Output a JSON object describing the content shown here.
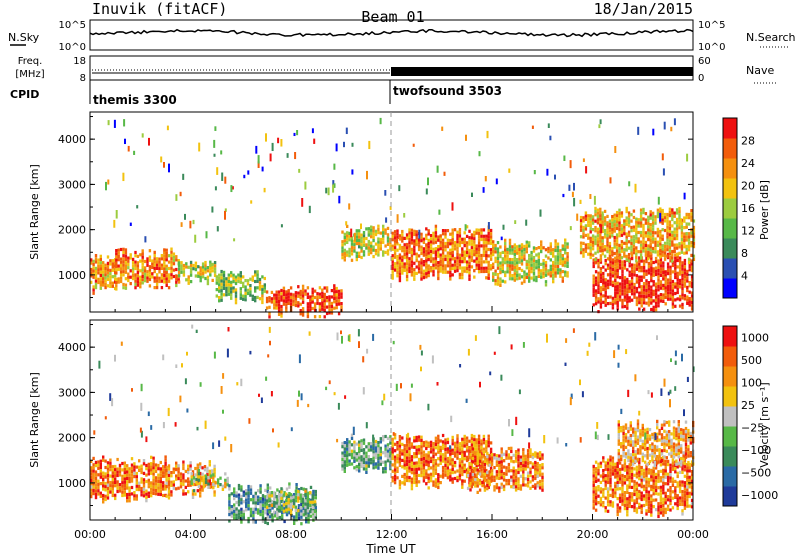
{
  "header": {
    "site": "Inuvik (fitACF)",
    "beam": "Beam 01",
    "date": "18/Jan/2015"
  },
  "aux_panels": {
    "nsky": {
      "left_label": "N.Sky",
      "right_label": "N.Search",
      "left_ticks": [
        "10^5",
        "10^0"
      ],
      "right_ticks": [
        "10^5",
        "10^0"
      ]
    },
    "freq": {
      "label_line1": "Freq.",
      "label_line2": "[MHz]",
      "right_label": "Nave",
      "left_ticks": [
        "18",
        "8"
      ],
      "right_ticks": [
        "60",
        "0"
      ]
    },
    "cpid": {
      "label": "CPID",
      "programs": [
        "themis 3300",
        "twofsound 3503"
      ]
    }
  },
  "colors": {
    "power_scale": [
      "#0000ff",
      "#2a4fb2",
      "#3a8a5a",
      "#57b847",
      "#9ccc3f",
      "#f2c20f",
      "#f5900f",
      "#f25c0a",
      "#ee1010"
    ],
    "velocity_scale": [
      "#1f3b9a",
      "#2a6aa5",
      "#3a8a5a",
      "#57b847",
      "#c0c0c0",
      "#f2c20f",
      "#f5900f",
      "#f25c0a",
      "#ee1010"
    ],
    "ground_scatter": "#c0c0c0"
  },
  "chart_data": [
    {
      "type": "heatmap",
      "title": "",
      "xlabel": "",
      "ylabel": "Slant Range [km]",
      "x_ticks": [
        "00:00",
        "04:00",
        "08:00",
        "12:00",
        "16:00",
        "20:00",
        "00:00"
      ],
      "x_range_hours": [
        0,
        24
      ],
      "y_ticks": [
        1000,
        2000,
        3000,
        4000
      ],
      "y_range_km": [
        180,
        4600
      ],
      "colorbar": {
        "label": "Power [dB]",
        "ticks": [
          "4",
          "8",
          "12",
          "16",
          "20",
          "24",
          "28"
        ],
        "range": [
          0,
          30
        ]
      },
      "echo_regions": [
        {
          "t": [
            0.0,
            1.0
          ],
          "range_km": [
            700,
            1400
          ],
          "level": 0.72
        },
        {
          "t": [
            1.0,
            3.5
          ],
          "range_km": [
            800,
            1500
          ],
          "level": 0.78
        },
        {
          "t": [
            3.5,
            5.0
          ],
          "range_km": [
            900,
            1300
          ],
          "level": 0.55
        },
        {
          "t": [
            5.0,
            7.0
          ],
          "range_km": [
            500,
            1000
          ],
          "level": 0.45
        },
        {
          "t": [
            7.0,
            10.0
          ],
          "range_km": [
            200,
            700
          ],
          "level": 0.92
        },
        {
          "t": [
            10.0,
            12.0
          ],
          "range_km": [
            1400,
            2000
          ],
          "level": 0.55
        },
        {
          "t": [
            12.0,
            16.0
          ],
          "range_km": [
            1000,
            2000
          ],
          "level": 0.82
        },
        {
          "t": [
            16.0,
            19.0
          ],
          "range_km": [
            900,
            1700
          ],
          "level": 0.6
        },
        {
          "t": [
            20.0,
            24.0
          ],
          "range_km": [
            300,
            1400
          ],
          "level": 0.95
        },
        {
          "t": [
            19.5,
            24.0
          ],
          "range_km": [
            1400,
            2400
          ],
          "level": 0.7
        }
      ]
    },
    {
      "type": "heatmap",
      "title": "",
      "xlabel": "Time UT",
      "ylabel": "Slant Range [km]",
      "x_ticks": [
        "00:00",
        "04:00",
        "08:00",
        "12:00",
        "16:00",
        "20:00",
        "00:00"
      ],
      "x_range_hours": [
        0,
        24
      ],
      "y_ticks": [
        1000,
        2000,
        3000,
        4000
      ],
      "y_range_km": [
        180,
        4600
      ],
      "colorbar": {
        "label": "Velocity [m s⁻¹]",
        "ticks": [
          "1000",
          "500",
          "100",
          "25",
          "−25",
          "−100",
          "−500",
          "−1000"
        ]
      },
      "echo_regions": [
        {
          "t": [
            0.0,
            3.0
          ],
          "range_km": [
            700,
            1500
          ],
          "level": 0.8
        },
        {
          "t": [
            3.0,
            5.0
          ],
          "range_km": [
            800,
            1400
          ],
          "level": 0.75
        },
        {
          "t": [
            4.0,
            5.5
          ],
          "range_km": [
            900,
            1200
          ],
          "level": 0.45
        },
        {
          "t": [
            5.5,
            9.0
          ],
          "range_km": [
            200,
            900
          ],
          "level": 0.3
        },
        {
          "t": [
            7.0,
            9.0
          ],
          "range_km": [
            400,
            800
          ],
          "level": 0.45
        },
        {
          "t": [
            10.0,
            12.0
          ],
          "range_km": [
            1300,
            2000
          ],
          "level": 0.35
        },
        {
          "t": [
            12.0,
            16.0
          ],
          "range_km": [
            1000,
            2000
          ],
          "level": 0.82
        },
        {
          "t": [
            15.0,
            18.0
          ],
          "range_km": [
            900,
            1700
          ],
          "level": 0.78
        },
        {
          "t": [
            20.0,
            24.0
          ],
          "range_km": [
            400,
            1500
          ],
          "level": 0.8
        },
        {
          "t": [
            21.0,
            24.0
          ],
          "range_km": [
            1500,
            2300
          ],
          "level": 0.7
        }
      ]
    }
  ]
}
